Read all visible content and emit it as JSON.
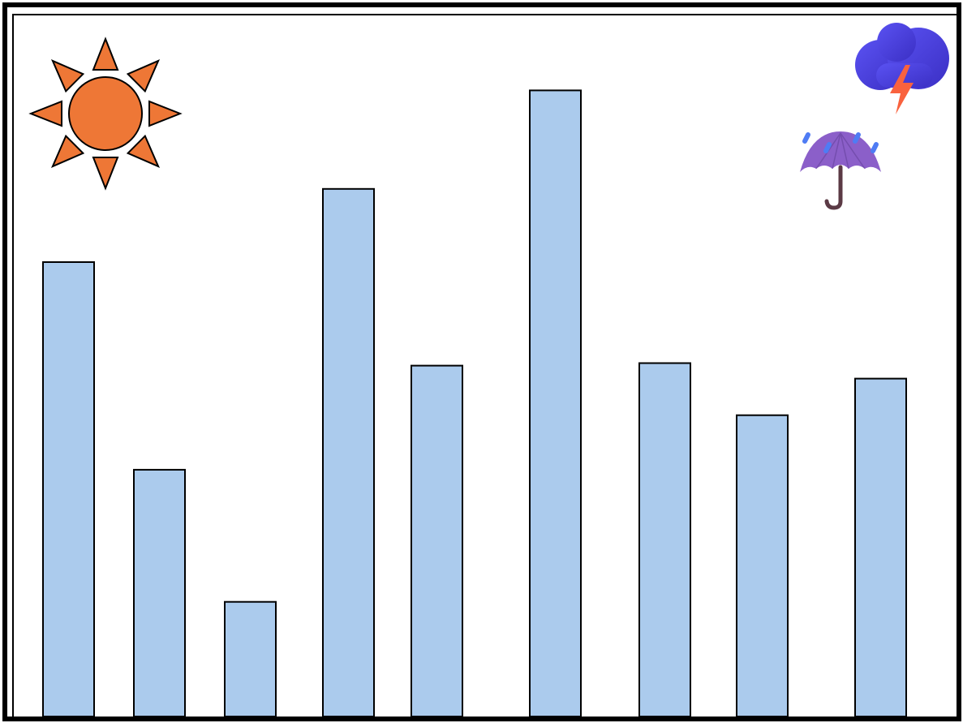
{
  "chart_data": {
    "type": "bar",
    "title": "",
    "xlabel": "",
    "ylabel": "",
    "ylim": [
      0,
      100
    ],
    "grid": false,
    "values": [
      73.3,
      39.8,
      18.5,
      85.1,
      56.6,
      101.0,
      57.0,
      48.6,
      54.5
    ],
    "bar_fill": "#abcbed",
    "bar_stroke": "#000000"
  },
  "decorations": {
    "sun": {
      "icon": "sun-icon",
      "color": "#ee7736",
      "stroke": "#000000"
    },
    "storm_cloud": {
      "icon": "storm-cloud-icon",
      "cloud_color": "#4b3fe0",
      "bolt_color": "#f9623e"
    },
    "rain_umbrella": {
      "icon": "umbrella-with-rain-icon",
      "canopy_color": "#8b5fc9",
      "handle_color": "#5b3a45",
      "drop_color": "#4f7cf4"
    }
  },
  "colors": {
    "frame": "#000000",
    "background": "#ffffff"
  }
}
